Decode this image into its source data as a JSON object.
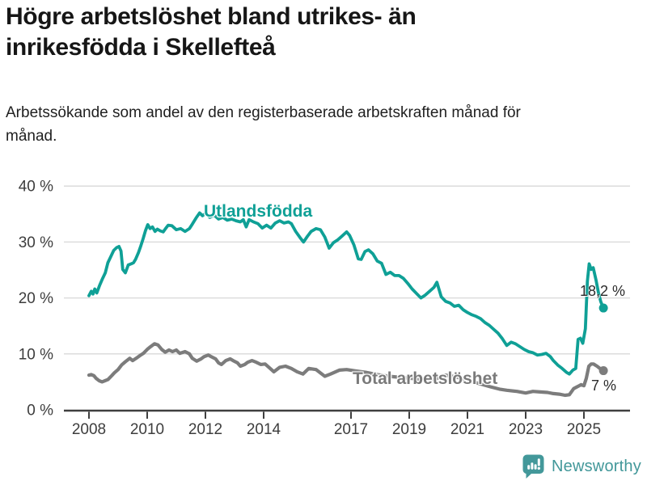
{
  "header": {
    "title": "Högre arbetslöshet bland utrikes- än inrikesfödda i Skellefteå",
    "subtitle": "Arbetssökande som andel av den registerbaserade arbetskraften månad för månad."
  },
  "chart_data": {
    "type": "line",
    "unit": "%",
    "xlim": [
      2008,
      2025.9
    ],
    "ylim": [
      0,
      40
    ],
    "x_ticks": [
      2008,
      2010,
      2012,
      2014,
      2017,
      2019,
      2021,
      2023,
      2025
    ],
    "y_ticks": [
      0,
      10,
      20,
      30,
      40
    ],
    "y_tick_suffix": " %",
    "grid": "horizontal",
    "colors": {
      "grid": "#d8d8d8",
      "axis": "#3f3f3f",
      "tick_text": "#3d3d3d"
    },
    "series": [
      {
        "name": "Utlandsfödda",
        "color": "#0fa096",
        "end_label": "18,2 %",
        "end_value": 18.2,
        "points": [
          [
            2008.0,
            20.4
          ],
          [
            2008.08,
            21.2
          ],
          [
            2008.14,
            20.7
          ],
          [
            2008.2,
            21.6
          ],
          [
            2008.27,
            20.9
          ],
          [
            2008.37,
            22.3
          ],
          [
            2008.47,
            23.5
          ],
          [
            2008.56,
            24.5
          ],
          [
            2008.65,
            26.3
          ],
          [
            2008.75,
            27.4
          ],
          [
            2008.85,
            28.5
          ],
          [
            2008.95,
            29.0
          ],
          [
            2009.03,
            29.2
          ],
          [
            2009.1,
            28.4
          ],
          [
            2009.16,
            25.1
          ],
          [
            2009.25,
            24.5
          ],
          [
            2009.35,
            25.9
          ],
          [
            2009.45,
            26.1
          ],
          [
            2009.53,
            26.3
          ],
          [
            2009.6,
            26.9
          ],
          [
            2009.7,
            28.1
          ],
          [
            2009.78,
            29.3
          ],
          [
            2009.86,
            30.6
          ],
          [
            2009.94,
            32.0
          ],
          [
            2010.02,
            33.1
          ],
          [
            2010.1,
            32.4
          ],
          [
            2010.18,
            32.7
          ],
          [
            2010.27,
            31.9
          ],
          [
            2010.35,
            32.3
          ],
          [
            2010.45,
            32.0
          ],
          [
            2010.55,
            31.8
          ],
          [
            2010.63,
            32.4
          ],
          [
            2010.72,
            33.0
          ],
          [
            2010.85,
            32.9
          ],
          [
            2011.0,
            32.2
          ],
          [
            2011.15,
            32.4
          ],
          [
            2011.3,
            31.9
          ],
          [
            2011.45,
            32.4
          ],
          [
            2011.55,
            33.2
          ],
          [
            2011.68,
            34.3
          ],
          [
            2011.8,
            35.2
          ],
          [
            2011.9,
            34.7
          ],
          [
            2012.0,
            35.1
          ],
          [
            2012.15,
            34.4
          ],
          [
            2012.3,
            34.8
          ],
          [
            2012.45,
            34.1
          ],
          [
            2012.6,
            34.4
          ],
          [
            2012.75,
            33.9
          ],
          [
            2012.9,
            34.1
          ],
          [
            2013.05,
            33.8
          ],
          [
            2013.2,
            33.6
          ],
          [
            2013.3,
            34.0
          ],
          [
            2013.4,
            32.7
          ],
          [
            2013.5,
            34.0
          ],
          [
            2013.65,
            33.6
          ],
          [
            2013.8,
            33.3
          ],
          [
            2013.95,
            32.5
          ],
          [
            2014.1,
            33.0
          ],
          [
            2014.25,
            32.5
          ],
          [
            2014.4,
            33.4
          ],
          [
            2014.55,
            33.8
          ],
          [
            2014.7,
            33.4
          ],
          [
            2014.85,
            33.6
          ],
          [
            2014.95,
            33.3
          ],
          [
            2015.1,
            31.9
          ],
          [
            2015.25,
            30.8
          ],
          [
            2015.37,
            30.0
          ],
          [
            2015.5,
            31.0
          ],
          [
            2015.63,
            31.9
          ],
          [
            2015.8,
            32.4
          ],
          [
            2015.95,
            32.2
          ],
          [
            2016.1,
            30.9
          ],
          [
            2016.25,
            28.9
          ],
          [
            2016.4,
            29.9
          ],
          [
            2016.55,
            30.4
          ],
          [
            2016.7,
            31.1
          ],
          [
            2016.85,
            31.8
          ],
          [
            2016.95,
            31.2
          ],
          [
            2017.1,
            29.5
          ],
          [
            2017.25,
            27.0
          ],
          [
            2017.35,
            26.9
          ],
          [
            2017.48,
            28.3
          ],
          [
            2017.6,
            28.6
          ],
          [
            2017.75,
            27.9
          ],
          [
            2017.9,
            26.6
          ],
          [
            2018.05,
            26.2
          ],
          [
            2018.2,
            24.2
          ],
          [
            2018.35,
            24.6
          ],
          [
            2018.5,
            24.0
          ],
          [
            2018.65,
            24.0
          ],
          [
            2018.8,
            23.5
          ],
          [
            2018.95,
            22.6
          ],
          [
            2019.1,
            21.6
          ],
          [
            2019.25,
            20.8
          ],
          [
            2019.4,
            20.0
          ],
          [
            2019.55,
            20.5
          ],
          [
            2019.7,
            21.2
          ],
          [
            2019.85,
            21.9
          ],
          [
            2019.95,
            22.8
          ],
          [
            2020.1,
            20.2
          ],
          [
            2020.25,
            19.4
          ],
          [
            2020.4,
            19.1
          ],
          [
            2020.55,
            18.5
          ],
          [
            2020.7,
            18.7
          ],
          [
            2020.85,
            17.9
          ],
          [
            2021.0,
            17.4
          ],
          [
            2021.15,
            17.0
          ],
          [
            2021.3,
            16.7
          ],
          [
            2021.45,
            16.3
          ],
          [
            2021.6,
            15.6
          ],
          [
            2021.75,
            15.1
          ],
          [
            2021.9,
            14.4
          ],
          [
            2022.05,
            13.7
          ],
          [
            2022.2,
            12.7
          ],
          [
            2022.35,
            11.5
          ],
          [
            2022.5,
            12.1
          ],
          [
            2022.65,
            11.8
          ],
          [
            2022.8,
            11.3
          ],
          [
            2022.95,
            10.8
          ],
          [
            2023.1,
            10.4
          ],
          [
            2023.25,
            10.2
          ],
          [
            2023.4,
            9.8
          ],
          [
            2023.55,
            9.9
          ],
          [
            2023.7,
            10.1
          ],
          [
            2023.85,
            9.5
          ],
          [
            2023.95,
            8.8
          ],
          [
            2024.1,
            8.0
          ],
          [
            2024.25,
            7.4
          ],
          [
            2024.4,
            6.7
          ],
          [
            2024.5,
            6.4
          ],
          [
            2024.62,
            7.1
          ],
          [
            2024.72,
            7.4
          ],
          [
            2024.8,
            12.6
          ],
          [
            2024.88,
            12.8
          ],
          [
            2024.96,
            11.9
          ],
          [
            2025.05,
            14.5
          ],
          [
            2025.12,
            23.0
          ],
          [
            2025.18,
            26.1
          ],
          [
            2025.25,
            25.1
          ],
          [
            2025.32,
            25.4
          ],
          [
            2025.42,
            23.1
          ],
          [
            2025.5,
            20.9
          ],
          [
            2025.58,
            19.3
          ],
          [
            2025.67,
            18.2
          ]
        ]
      },
      {
        "name": "Total arbetslöshet",
        "color": "#7c7c7c",
        "end_label": "7 %",
        "end_value": 7.0,
        "points": [
          [
            2008.0,
            6.2
          ],
          [
            2008.08,
            6.3
          ],
          [
            2008.17,
            6.1
          ],
          [
            2008.25,
            5.6
          ],
          [
            2008.35,
            5.2
          ],
          [
            2008.45,
            5.0
          ],
          [
            2008.55,
            5.2
          ],
          [
            2008.65,
            5.4
          ],
          [
            2008.78,
            6.1
          ],
          [
            2008.87,
            6.6
          ],
          [
            2009.0,
            7.2
          ],
          [
            2009.12,
            8.0
          ],
          [
            2009.25,
            8.6
          ],
          [
            2009.4,
            9.2
          ],
          [
            2009.5,
            8.8
          ],
          [
            2009.62,
            9.2
          ],
          [
            2009.75,
            9.7
          ],
          [
            2009.87,
            10.1
          ],
          [
            2010.0,
            10.8
          ],
          [
            2010.12,
            11.3
          ],
          [
            2010.25,
            11.8
          ],
          [
            2010.37,
            11.6
          ],
          [
            2010.5,
            10.8
          ],
          [
            2010.62,
            10.3
          ],
          [
            2010.75,
            10.7
          ],
          [
            2010.87,
            10.4
          ],
          [
            2011.0,
            10.7
          ],
          [
            2011.12,
            10.1
          ],
          [
            2011.3,
            10.4
          ],
          [
            2011.45,
            10.0
          ],
          [
            2011.55,
            9.2
          ],
          [
            2011.7,
            8.7
          ],
          [
            2011.85,
            9.1
          ],
          [
            2011.95,
            9.5
          ],
          [
            2012.1,
            9.8
          ],
          [
            2012.2,
            9.5
          ],
          [
            2012.35,
            9.1
          ],
          [
            2012.45,
            8.4
          ],
          [
            2012.55,
            8.1
          ],
          [
            2012.7,
            8.8
          ],
          [
            2012.85,
            9.1
          ],
          [
            2012.95,
            8.8
          ],
          [
            2013.1,
            8.4
          ],
          [
            2013.2,
            7.8
          ],
          [
            2013.35,
            8.1
          ],
          [
            2013.45,
            8.5
          ],
          [
            2013.6,
            8.8
          ],
          [
            2013.75,
            8.5
          ],
          [
            2013.9,
            8.1
          ],
          [
            2014.05,
            8.2
          ],
          [
            2014.2,
            7.5
          ],
          [
            2014.35,
            6.8
          ],
          [
            2014.55,
            7.6
          ],
          [
            2014.75,
            7.8
          ],
          [
            2014.95,
            7.4
          ],
          [
            2015.15,
            6.8
          ],
          [
            2015.35,
            6.4
          ],
          [
            2015.55,
            7.4
          ],
          [
            2015.8,
            7.2
          ],
          [
            2016.1,
            6.0
          ],
          [
            2016.3,
            6.4
          ],
          [
            2016.6,
            7.1
          ],
          [
            2016.85,
            7.2
          ],
          [
            2017.1,
            7.0
          ],
          [
            2017.5,
            6.7
          ],
          [
            2017.9,
            6.3
          ],
          [
            2018.3,
            6.0
          ],
          [
            2018.7,
            5.8
          ],
          [
            2019.1,
            5.6
          ],
          [
            2019.5,
            5.3
          ],
          [
            2019.9,
            5.5
          ],
          [
            2020.25,
            6.2
          ],
          [
            2020.6,
            5.9
          ],
          [
            2021.0,
            5.3
          ],
          [
            2021.4,
            4.7
          ],
          [
            2021.8,
            4.1
          ],
          [
            2022.1,
            3.7
          ],
          [
            2022.35,
            3.5
          ],
          [
            2022.7,
            3.3
          ],
          [
            2023.0,
            3.0
          ],
          [
            2023.25,
            3.3
          ],
          [
            2023.5,
            3.2
          ],
          [
            2023.75,
            3.1
          ],
          [
            2023.95,
            2.9
          ],
          [
            2024.15,
            2.8
          ],
          [
            2024.35,
            2.6
          ],
          [
            2024.5,
            2.7
          ],
          [
            2024.65,
            3.8
          ],
          [
            2024.8,
            4.2
          ],
          [
            2024.9,
            4.5
          ],
          [
            2025.0,
            4.3
          ],
          [
            2025.08,
            5.6
          ],
          [
            2025.17,
            7.8
          ],
          [
            2025.25,
            8.2
          ],
          [
            2025.33,
            8.2
          ],
          [
            2025.45,
            7.8
          ],
          [
            2025.55,
            7.4
          ],
          [
            2025.67,
            7.0
          ]
        ]
      }
    ]
  },
  "footer": {
    "brand": "Newsworthy",
    "brand_color": "#43989a",
    "logo_icon": "bar-chart-speech-bubble"
  }
}
